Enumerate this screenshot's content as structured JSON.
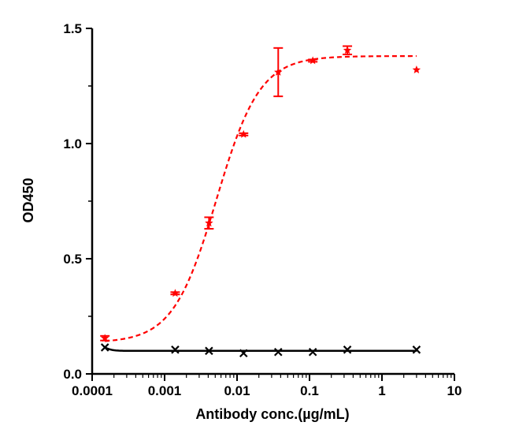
{
  "chart_data": {
    "type": "scatter",
    "title": "",
    "xlabel": "Antibody conc.(µg/mL)",
    "ylabel": "OD450",
    "x_scale": "log",
    "xlim": [
      0.0001,
      10
    ],
    "ylim": [
      0,
      1.5
    ],
    "x_ticks": [
      0.0001,
      0.001,
      0.01,
      0.1,
      1,
      10
    ],
    "x_tick_labels": [
      "0.0001",
      "0.001",
      "0.01",
      "0.1",
      "1",
      "10"
    ],
    "y_ticks": [
      0.0,
      0.5,
      1.0,
      1.5
    ],
    "y_tick_labels": [
      "0.0",
      "0.5",
      "1.0",
      "1.5"
    ],
    "grid": false,
    "legend": "none",
    "series": [
      {
        "color": "#ff0000",
        "marker": "star",
        "fit_line": "dashed",
        "x": [
          0.00015,
          0.0014,
          0.0041,
          0.0123,
          0.037,
          0.111,
          0.333,
          3.0
        ],
        "y": [
          0.155,
          0.35,
          0.655,
          1.04,
          1.31,
          1.36,
          1.405,
          1.32
        ],
        "error": [
          0.01,
          0.005,
          0.025,
          0.005,
          0.105,
          0.005,
          0.018,
          0.0
        ]
      },
      {
        "color": "#000000",
        "marker": "x",
        "fit_line": "solid",
        "x": [
          0.00015,
          0.0014,
          0.0041,
          0.0123,
          0.037,
          0.111,
          0.333,
          3.0
        ],
        "y": [
          0.115,
          0.105,
          0.1,
          0.09,
          0.095,
          0.095,
          0.105,
          0.105
        ],
        "error": [
          0,
          0,
          0,
          0,
          0,
          0,
          0,
          0
        ]
      }
    ]
  }
}
